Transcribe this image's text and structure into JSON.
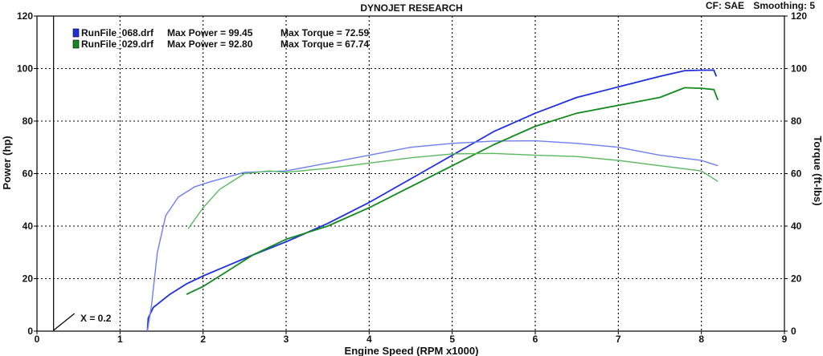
{
  "header": {
    "title": "DYNOJET RESEARCH",
    "cf": "CF: SAE",
    "smoothing": "Smoothing: 5"
  },
  "legend": [
    {
      "file": "RunFile_068.drf",
      "power_text": "Max Power = 99.45",
      "torque_text": "Max Torque = 72.59",
      "color": "#1f2fe0"
    },
    {
      "file": "RunFile_029.drf",
      "power_text": "Max Power = 92.80",
      "torque_text": "Max Torque = 67.74",
      "color": "#138a1f"
    }
  ],
  "marker_label": "X = 0.2",
  "colors": {
    "power_068": "#1f2fe0",
    "torque_068": "#6f7ef0",
    "power_029": "#138a1f",
    "torque_029": "#5ab85f",
    "grid": "#000000"
  },
  "chart_data": {
    "type": "line",
    "title": "DYNOJET RESEARCH",
    "xlabel": "Engine Speed (RPM x1000)",
    "ylabel_left": "Power (hp)",
    "ylabel_right": "Torque (ft-lbs)",
    "xlim": [
      0,
      9
    ],
    "ylim_left": [
      0,
      120
    ],
    "ylim_right": [
      0,
      120
    ],
    "x_ticks": [
      "0",
      "1",
      "2",
      "3",
      "4",
      "5",
      "6",
      "7",
      "8",
      "9"
    ],
    "y_ticks_left": [
      "0",
      "20",
      "40",
      "60",
      "80",
      "100",
      "120"
    ],
    "y_ticks_right": [
      "0",
      "20",
      "40",
      "60",
      "80",
      "100",
      "120"
    ],
    "grid": true,
    "legend_position": "top-left",
    "marker_x": 0.2,
    "series": [
      {
        "name": "RunFile_068.drf",
        "measure": "power",
        "axis": "left",
        "points": [
          [
            1.33,
            0
          ],
          [
            1.34,
            5
          ],
          [
            1.4,
            9
          ],
          [
            1.6,
            14
          ],
          [
            1.8,
            18
          ],
          [
            2.0,
            21
          ],
          [
            2.3,
            25
          ],
          [
            2.6,
            29
          ],
          [
            3.0,
            34
          ],
          [
            3.5,
            41
          ],
          [
            4.0,
            49
          ],
          [
            4.5,
            58
          ],
          [
            5.0,
            67
          ],
          [
            5.5,
            76
          ],
          [
            6.0,
            83
          ],
          [
            6.5,
            89
          ],
          [
            7.0,
            93
          ],
          [
            7.5,
            97
          ],
          [
            7.8,
            99.2
          ],
          [
            8.0,
            99.4
          ],
          [
            8.15,
            99.4
          ],
          [
            8.18,
            97
          ]
        ]
      },
      {
        "name": "RunFile_068.drf",
        "measure": "torque",
        "axis": "right",
        "points": [
          [
            1.33,
            0
          ],
          [
            1.38,
            10
          ],
          [
            1.45,
            30
          ],
          [
            1.55,
            44
          ],
          [
            1.7,
            51
          ],
          [
            1.9,
            55
          ],
          [
            2.1,
            57
          ],
          [
            2.5,
            60.5
          ],
          [
            3.0,
            61
          ],
          [
            3.5,
            64
          ],
          [
            4.0,
            67
          ],
          [
            4.5,
            70
          ],
          [
            5.0,
            71.5
          ],
          [
            5.5,
            72.4
          ],
          [
            6.0,
            72.5
          ],
          [
            6.5,
            71.5
          ],
          [
            7.0,
            70
          ],
          [
            7.5,
            67
          ],
          [
            8.0,
            65
          ],
          [
            8.2,
            63
          ]
        ]
      },
      {
        "name": "RunFile_029.drf",
        "measure": "power",
        "axis": "left",
        "points": [
          [
            1.8,
            14
          ],
          [
            2.0,
            17
          ],
          [
            2.3,
            23
          ],
          [
            2.6,
            29
          ],
          [
            3.0,
            35
          ],
          [
            3.5,
            40
          ],
          [
            4.0,
            47
          ],
          [
            4.5,
            55
          ],
          [
            5.0,
            63
          ],
          [
            5.5,
            71
          ],
          [
            6.0,
            78
          ],
          [
            6.5,
            83
          ],
          [
            7.0,
            86
          ],
          [
            7.5,
            89
          ],
          [
            7.8,
            92.7
          ],
          [
            8.0,
            92.5
          ],
          [
            8.15,
            92
          ],
          [
            8.2,
            88
          ]
        ]
      },
      {
        "name": "RunFile_029.drf",
        "measure": "torque",
        "axis": "right",
        "points": [
          [
            1.82,
            39
          ],
          [
            2.0,
            47
          ],
          [
            2.2,
            54
          ],
          [
            2.5,
            60
          ],
          [
            2.8,
            61
          ],
          [
            3.0,
            60.5
          ],
          [
            3.5,
            62
          ],
          [
            4.0,
            64
          ],
          [
            4.5,
            66
          ],
          [
            5.0,
            67.5
          ],
          [
            5.5,
            67.7
          ],
          [
            6.0,
            67
          ],
          [
            6.5,
            66.5
          ],
          [
            7.0,
            65
          ],
          [
            7.5,
            63
          ],
          [
            8.0,
            61
          ],
          [
            8.2,
            57
          ]
        ]
      }
    ]
  }
}
